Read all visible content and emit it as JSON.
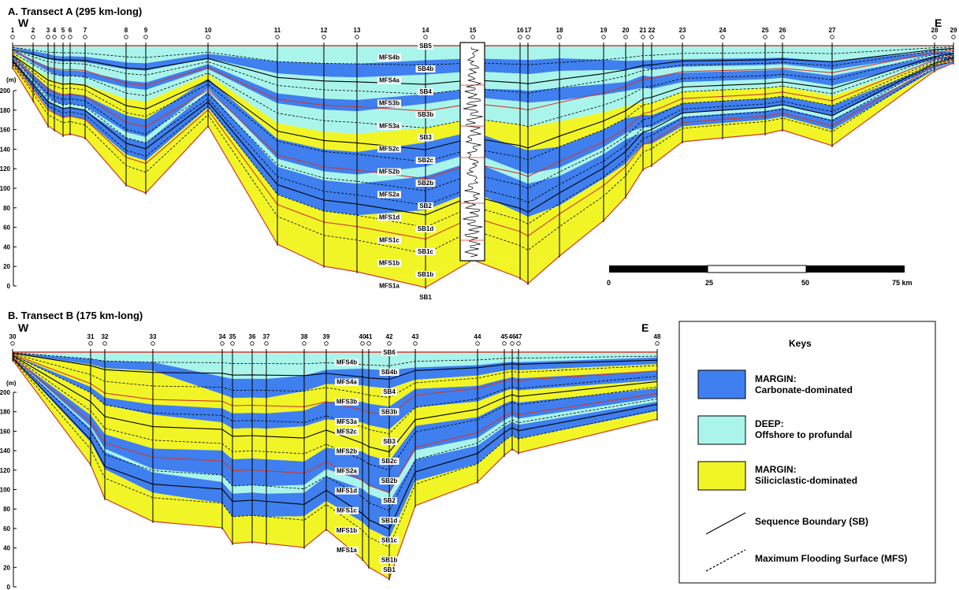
{
  "colors": {
    "carbonate": "#3f7fef",
    "deep": "#a9f5ec",
    "siliciclastic": "#f1f526",
    "redline": "#d03a2e"
  },
  "transect_a": {
    "title": "A. Transect A (295 km-long)",
    "west": "W",
    "east": "E",
    "unit": "(m)",
    "y_ticks": [
      "200",
      "180",
      "160",
      "140",
      "120",
      "100",
      "80",
      "60",
      "40",
      "20",
      "0"
    ],
    "wells": [
      "1",
      "2",
      "3",
      "4",
      "5",
      "6",
      "7",
      "8",
      "9",
      "10",
      "11",
      "12",
      "13",
      "14",
      "15",
      "16",
      "17",
      "18",
      "19",
      "20",
      "21",
      "22",
      "23",
      "24",
      "25",
      "26",
      "27",
      "28",
      "29"
    ],
    "surface_labels": [
      {
        "id": "sb5",
        "text": "SB5"
      },
      {
        "id": "mfs4b",
        "text": "MFS4b"
      },
      {
        "id": "sb4b",
        "text": "SB4b"
      },
      {
        "id": "mfs4a",
        "text": "MFS4a"
      },
      {
        "id": "sb4",
        "text": "SB4"
      },
      {
        "id": "mfs3b",
        "text": "MFS3b"
      },
      {
        "id": "sb3b",
        "text": "SB3b"
      },
      {
        "id": "mfs3a",
        "text": "MFS3a"
      },
      {
        "id": "sb3",
        "text": "SB3"
      },
      {
        "id": "mfs2c",
        "text": "MFS2c"
      },
      {
        "id": "sb2c",
        "text": "SB2c"
      },
      {
        "id": "mfs2b",
        "text": "MFS2b"
      },
      {
        "id": "sb2b",
        "text": "SB2b"
      },
      {
        "id": "mfs2a",
        "text": "MFS2a"
      },
      {
        "id": "sb2",
        "text": "SB2"
      },
      {
        "id": "mfs1d",
        "text": "MFS1d"
      },
      {
        "id": "sb1d",
        "text": "SB1d"
      },
      {
        "id": "mfs1c",
        "text": "MFS1c"
      },
      {
        "id": "sb1c",
        "text": "SB1c"
      },
      {
        "id": "mfs1b",
        "text": "MFS1b"
      },
      {
        "id": "sb1b",
        "text": "SB1b"
      },
      {
        "id": "mfs1a",
        "text": "MFS1a"
      },
      {
        "id": "sb1",
        "text": "SB1"
      }
    ],
    "scale_bar": {
      "labels": [
        "0",
        "25",
        "50",
        "75 km"
      ]
    }
  },
  "transect_b": {
    "title": "B. Transect B (175 km-long)",
    "west": "W",
    "east": "E",
    "unit": "(m)",
    "y_ticks": [
      "200",
      "180",
      "160",
      "140",
      "120",
      "100",
      "80",
      "60",
      "40",
      "20",
      "0"
    ],
    "wells": [
      "30",
      "31",
      "32",
      "33",
      "34",
      "35",
      "36",
      "37",
      "38",
      "39",
      "40",
      "41",
      "42",
      "43",
      "44",
      "45",
      "46",
      "47",
      "48"
    ],
    "surface_labels": [
      {
        "id": "sb6",
        "text": "SB6"
      },
      {
        "id": "mfs4b",
        "text": "MFS4b"
      },
      {
        "id": "sb4b",
        "text": "SB4b"
      },
      {
        "id": "mfs4a",
        "text": "MFS4a"
      },
      {
        "id": "sb4",
        "text": "SB4"
      },
      {
        "id": "mfs3b",
        "text": "MFS3b"
      },
      {
        "id": "sb3b",
        "text": "SB3b"
      },
      {
        "id": "mfs3a",
        "text": "MFS3a"
      },
      {
        "id": "mfs2c",
        "text": "MFS2c"
      },
      {
        "id": "sb3",
        "text": "SB3"
      },
      {
        "id": "mfs2b",
        "text": "MFS2b"
      },
      {
        "id": "sb2c",
        "text": "SB2c"
      },
      {
        "id": "mfs2a",
        "text": "MFS2a"
      },
      {
        "id": "sb2b",
        "text": "SB2b"
      },
      {
        "id": "mfs1d",
        "text": "MFS1d"
      },
      {
        "id": "sb2",
        "text": "SB2"
      },
      {
        "id": "mfs1c",
        "text": "MFS1c"
      },
      {
        "id": "sb1d",
        "text": "SB1d"
      },
      {
        "id": "mfs1b",
        "text": "MFS1b"
      },
      {
        "id": "sb1c",
        "text": "SB1c"
      },
      {
        "id": "mfs1a",
        "text": "MFS1a"
      },
      {
        "id": "sb1b",
        "text": "SB1b"
      },
      {
        "id": "sb1",
        "text": "SB1"
      }
    ]
  },
  "legend": {
    "title": "Keys",
    "items": [
      {
        "line1": "MARGIN:",
        "line2": "Carbonate-dominated",
        "color": "carbonate"
      },
      {
        "line1": "DEEP:",
        "line2": "Offshore to profundal",
        "color": "deep"
      },
      {
        "line1": "MARGIN:",
        "line2": "Siliciclastic-dominated",
        "color": "siliciclastic"
      }
    ],
    "sb_label": "Sequence Boundary (SB)",
    "mfs_label": "Maximum Flooding Surface (MFS)"
  }
}
